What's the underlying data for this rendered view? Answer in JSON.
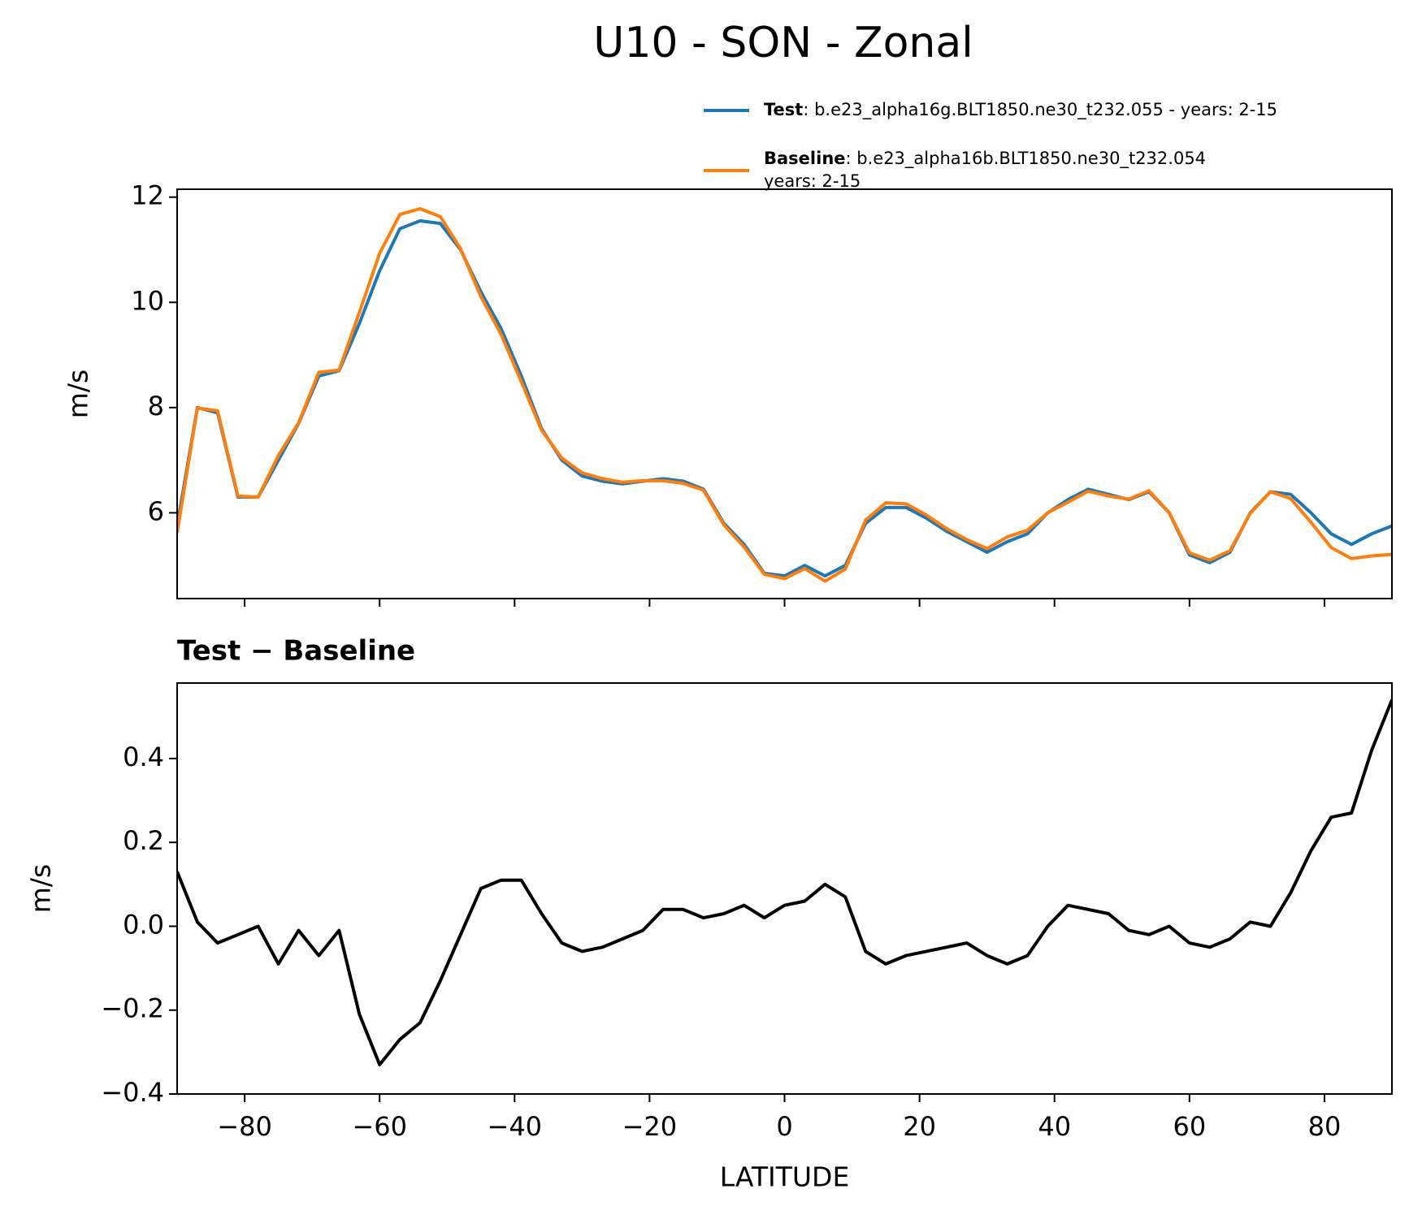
{
  "title": "U10 - SON - Zonal",
  "chart_data": [
    {
      "type": "line",
      "x": [
        -90,
        -87,
        -84,
        -81,
        -78,
        -75,
        -72,
        -69,
        -66,
        -63,
        -60,
        -57,
        -54,
        -51,
        -48,
        -45,
        -42,
        -39,
        -36,
        -33,
        -30,
        -27,
        -24,
        -21,
        -18,
        -15,
        -12,
        -9,
        -6,
        -3,
        0,
        3,
        6,
        9,
        12,
        15,
        18,
        21,
        24,
        27,
        30,
        33,
        36,
        39,
        42,
        45,
        48,
        51,
        54,
        57,
        60,
        63,
        66,
        69,
        72,
        75,
        78,
        81,
        84,
        87,
        90
      ],
      "series": [
        {
          "name": "Test",
          "description": [
            ": b.e23_alpha16g.BLT1850.ne30_t232.055 - years: 2-15"
          ],
          "color": "#1f77b4",
          "values": [
            5.75,
            8.0,
            7.9,
            6.3,
            6.3,
            7.0,
            7.7,
            8.6,
            8.7,
            9.6,
            10.6,
            11.4,
            11.55,
            11.5,
            11.0,
            10.2,
            9.5,
            8.6,
            7.6,
            7.0,
            6.7,
            6.6,
            6.55,
            6.6,
            6.65,
            6.6,
            6.45,
            5.8,
            5.4,
            4.85,
            4.8,
            5.0,
            4.8,
            5.0,
            5.8,
            6.1,
            6.1,
            5.9,
            5.65,
            5.45,
            5.25,
            5.45,
            5.6,
            6.0,
            6.25,
            6.45,
            6.35,
            6.25,
            6.4,
            6.0,
            5.2,
            5.05,
            5.25,
            6.0,
            6.4,
            6.35,
            6.0,
            5.6,
            5.4,
            5.6,
            5.75
          ]
        },
        {
          "name": "Baseline",
          "description": [
            ": b.e23_alpha16b.BLT1850.ne30_t232.054",
            "years: 2-15"
          ],
          "color": "#ff7f0e",
          "values": [
            5.62,
            7.99,
            7.94,
            6.32,
            6.3,
            7.09,
            7.71,
            8.67,
            8.71,
            9.81,
            10.93,
            11.67,
            11.78,
            11.63,
            11.02,
            10.11,
            9.39,
            8.49,
            7.57,
            7.04,
            6.76,
            6.65,
            6.58,
            6.61,
            6.61,
            6.56,
            6.43,
            5.77,
            5.35,
            4.83,
            4.75,
            4.94,
            4.7,
            4.93,
            5.86,
            6.19,
            6.17,
            5.96,
            5.7,
            5.49,
            5.32,
            5.54,
            5.67,
            6.0,
            6.2,
            6.41,
            6.32,
            6.26,
            6.42,
            6.0,
            5.24,
            5.1,
            5.28,
            5.99,
            6.4,
            6.27,
            5.82,
            5.34,
            5.13,
            5.18,
            5.21
          ]
        }
      ],
      "ylabel": "m/s",
      "xlim": [
        -90,
        90
      ],
      "xticks": [
        -80,
        -60,
        -40,
        -20,
        0,
        20,
        40,
        60,
        80
      ],
      "xticklabels": false,
      "ylim": [
        4.37,
        12.15
      ],
      "yticks": [
        6,
        8,
        10,
        12
      ]
    },
    {
      "type": "line",
      "title": "Test − Baseline",
      "x": [
        -90,
        -87,
        -84,
        -81,
        -78,
        -75,
        -72,
        -69,
        -66,
        -63,
        -60,
        -57,
        -54,
        -51,
        -48,
        -45,
        -42,
        -39,
        -36,
        -33,
        -30,
        -27,
        -24,
        -21,
        -18,
        -15,
        -12,
        -9,
        -6,
        -3,
        0,
        3,
        6,
        9,
        12,
        15,
        18,
        21,
        24,
        27,
        30,
        33,
        36,
        39,
        42,
        45,
        48,
        51,
        54,
        57,
        60,
        63,
        66,
        69,
        72,
        75,
        78,
        81,
        84,
        87,
        90
      ],
      "series": [
        {
          "color": "#000000",
          "values": [
            0.13,
            0.01,
            -0.04,
            -0.02,
            0.0,
            -0.09,
            -0.01,
            -0.07,
            -0.01,
            -0.21,
            -0.33,
            -0.27,
            -0.23,
            -0.13,
            -0.02,
            0.09,
            0.11,
            0.11,
            0.03,
            -0.04,
            -0.06,
            -0.05,
            -0.03,
            -0.01,
            0.04,
            0.04,
            0.02,
            0.03,
            0.05,
            0.02,
            0.05,
            0.06,
            0.1,
            0.07,
            -0.06,
            -0.09,
            -0.07,
            -0.06,
            -0.05,
            -0.04,
            -0.07,
            -0.09,
            -0.07,
            0.0,
            0.05,
            0.04,
            0.03,
            -0.01,
            -0.02,
            0.0,
            -0.04,
            -0.05,
            -0.03,
            0.01,
            0.0,
            0.08,
            0.18,
            0.26,
            0.27,
            0.42,
            0.54
          ]
        }
      ],
      "xlabel": "LATITUDE",
      "ylabel": "m/s",
      "xlim": [
        -90,
        90
      ],
      "xticks": [
        {
          "value": -80,
          "label": "−80"
        },
        {
          "value": -60,
          "label": "−60"
        },
        {
          "value": -40,
          "label": "−40"
        },
        {
          "value": -20,
          "label": "−20"
        },
        0,
        20,
        40,
        60,
        80
      ],
      "xticklabels": true,
      "ylim": [
        -0.4,
        0.58
      ],
      "yticks": [
        {
          "value": -0.4,
          "label": "−0.4"
        },
        {
          "value": -0.2,
          "label": "−0.2"
        },
        {
          "value": 0,
          "label": "0.0"
        },
        0.2,
        0.4
      ]
    }
  ]
}
